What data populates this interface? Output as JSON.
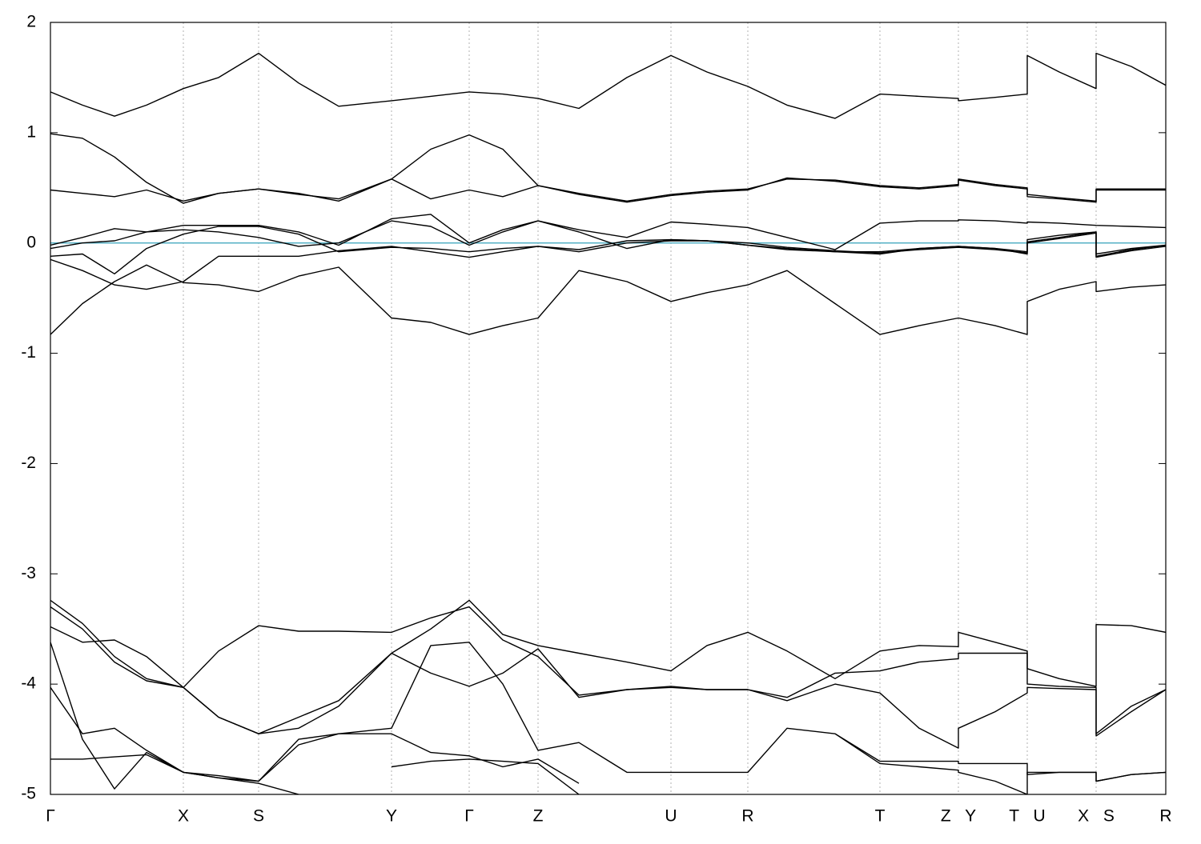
{
  "chart_data": {
    "type": "line",
    "x": [
      0,
      0.4,
      0.8,
      1.2,
      1.66,
      2.1,
      2.6,
      3.1,
      3.6,
      4.26,
      4.75,
      5.23,
      5.65,
      6.09,
      6.6,
      7.2,
      7.75,
      8.2,
      8.71,
      9.2,
      9.8,
      10.36,
      10.85,
      11.34,
      11.34,
      11.8,
      12.2,
      12.2,
      12.6,
      13.06,
      13.06,
      13.5,
      13.93
    ],
    "xlim": [
      0,
      13.93
    ],
    "xticks": [
      {
        "value": 0,
        "label": "Γ"
      },
      {
        "value": 1.66,
        "label": "X"
      },
      {
        "value": 2.6,
        "label": "S"
      },
      {
        "value": 4.26,
        "label": "Y"
      },
      {
        "value": 5.23,
        "label": "Γ"
      },
      {
        "value": 6.09,
        "label": "Z"
      },
      {
        "value": 7.75,
        "label": "U"
      },
      {
        "value": 8.71,
        "label": "R"
      },
      {
        "value": 10.36,
        "label": "T"
      },
      {
        "value": 11.34,
        "label": "Z Y"
      },
      {
        "value": 12.2,
        "label": "T U"
      },
      {
        "value": 13.06,
        "label": "X S"
      },
      {
        "value": 13.93,
        "label": "R"
      }
    ],
    "ylim": [
      -5,
      2
    ],
    "yticks": [
      -5,
      -4,
      -3,
      -2,
      -1,
      0,
      1,
      2
    ],
    "grid": true,
    "reference_line": {
      "value": 0,
      "color": "#5bb3c7"
    },
    "series": [
      {
        "color": "#000000",
        "values": [
          1.37,
          1.25,
          1.15,
          1.25,
          1.4,
          1.5,
          1.72,
          1.45,
          1.24,
          1.29,
          1.33,
          1.37,
          1.35,
          1.31,
          1.22,
          1.5,
          1.7,
          1.55,
          1.42,
          1.25,
          1.13,
          1.35,
          1.33,
          1.31,
          1.29,
          1.32,
          1.35,
          1.7,
          1.55,
          1.4,
          1.72,
          1.6,
          1.43
        ]
      },
      {
        "color": "#000000",
        "values": [
          0.99,
          0.95,
          0.78,
          0.55,
          0.36,
          0.45,
          0.49,
          0.45,
          0.38,
          0.58,
          0.85,
          0.98,
          0.85,
          0.52,
          0.45,
          0.38,
          0.44,
          0.47,
          0.49,
          0.58,
          0.57,
          0.52,
          0.5,
          0.53,
          0.58,
          0.53,
          0.5,
          0.44,
          0.41,
          0.38,
          0.49,
          0.49,
          0.49
        ]
      },
      {
        "color": "#000000",
        "values": [
          0.48,
          0.45,
          0.42,
          0.48,
          0.38,
          0.45,
          0.49,
          0.44,
          0.4,
          0.58,
          0.4,
          0.48,
          0.42,
          0.52,
          0.44,
          0.37,
          0.43,
          0.46,
          0.48,
          0.59,
          0.56,
          0.51,
          0.49,
          0.52,
          0.57,
          0.52,
          0.49,
          0.42,
          0.4,
          0.37,
          0.48,
          0.48,
          0.48
        ]
      },
      {
        "color": "#000000",
        "values": [
          -0.02,
          0.05,
          0.13,
          0.1,
          0.16,
          0.16,
          0.16,
          0.1,
          -0.02,
          0.22,
          0.26,
          0.0,
          0.12,
          0.2,
          0.12,
          0.05,
          0.19,
          0.17,
          0.14,
          0.05,
          -0.06,
          0.18,
          0.2,
          0.2,
          0.21,
          0.2,
          0.18,
          0.19,
          0.18,
          0.16,
          0.16,
          0.15,
          0.14
        ]
      },
      {
        "color": "#000000",
        "values": [
          -0.05,
          0.0,
          0.02,
          0.1,
          0.12,
          0.1,
          0.05,
          -0.03,
          0.0,
          0.2,
          0.15,
          -0.02,
          0.1,
          0.2,
          0.1,
          -0.05,
          0.03,
          0.02,
          -0.02,
          -0.06,
          -0.08,
          -0.08,
          -0.05,
          -0.03,
          -0.03,
          -0.05,
          -0.08,
          0.03,
          0.07,
          0.1,
          -0.12,
          -0.06,
          -0.02
        ]
      },
      {
        "color": "#000000",
        "values": [
          -0.12,
          -0.1,
          -0.28,
          -0.05,
          0.08,
          0.15,
          0.15,
          0.08,
          -0.08,
          -0.04,
          -0.05,
          -0.08,
          -0.05,
          -0.03,
          -0.06,
          0.02,
          0.03,
          0.02,
          -0.02,
          -0.05,
          -0.08,
          -0.1,
          -0.05,
          -0.03,
          -0.03,
          -0.05,
          -0.1,
          0.01,
          0.05,
          0.1,
          -0.1,
          -0.05,
          -0.02
        ]
      },
      {
        "color": "#000000",
        "values": [
          -0.15,
          -0.25,
          -0.38,
          -0.42,
          -0.35,
          -0.12,
          -0.12,
          -0.12,
          -0.07,
          -0.03,
          -0.08,
          -0.13,
          -0.08,
          -0.03,
          -0.08,
          0.0,
          0.02,
          0.02,
          0.0,
          -0.04,
          -0.07,
          -0.09,
          -0.06,
          -0.04,
          -0.04,
          -0.06,
          -0.09,
          0.0,
          0.04,
          0.09,
          -0.13,
          -0.07,
          -0.03
        ]
      },
      {
        "color": "#000000",
        "values": [
          -0.83,
          -0.55,
          -0.35,
          -0.2,
          -0.36,
          -0.38,
          -0.44,
          -0.3,
          -0.22,
          -0.68,
          -0.72,
          -0.83,
          -0.75,
          -0.68,
          -0.25,
          -0.35,
          -0.53,
          -0.45,
          -0.38,
          -0.25,
          -0.55,
          -0.83,
          -0.75,
          -0.68,
          -0.68,
          -0.75,
          -0.83,
          -0.53,
          -0.42,
          -0.35,
          -0.44,
          -0.4,
          -0.38
        ]
      },
      {
        "color": "#000000",
        "values": [
          -3.24,
          -3.45,
          -3.75,
          -3.95,
          -4.03,
          -4.3,
          -4.45,
          -4.3,
          -4.15,
          -3.72,
          -3.5,
          -3.24,
          -3.55,
          -3.65,
          -3.72,
          -3.8,
          -3.88,
          -3.65,
          -3.53,
          -3.7,
          -3.95,
          -3.7,
          -3.65,
          -3.66,
          -3.53,
          -3.62,
          -3.7,
          -3.86,
          -3.95,
          -4.02,
          -3.46,
          -3.47,
          -3.53
        ]
      },
      {
        "color": "#000000",
        "values": [
          -3.3,
          -3.5,
          -3.8,
          -3.97,
          -4.03,
          -3.7,
          -3.47,
          -3.52,
          -3.52,
          -3.53,
          -3.4,
          -3.3,
          -3.6,
          -3.75,
          -4.1,
          -4.05,
          -4.02,
          -4.05,
          -4.05,
          -4.12,
          -3.9,
          -3.88,
          -3.8,
          -3.77,
          -3.72,
          -3.72,
          -3.72,
          -4.0,
          -4.02,
          -4.03,
          -4.45,
          -4.2,
          -4.05
        ]
      },
      {
        "color": "#000000",
        "values": [
          -3.48,
          -3.62,
          -3.6,
          -3.75,
          -4.03,
          -4.3,
          -4.45,
          -4.4,
          -4.2,
          -3.72,
          -3.9,
          -4.02,
          -3.9,
          -3.68,
          -4.12,
          -4.05,
          -4.03,
          -4.05,
          -4.05,
          -4.15,
          -4.0,
          -4.08,
          -4.4,
          -4.58,
          -4.4,
          -4.25,
          -4.08,
          -4.03,
          -4.04,
          -4.05,
          -4.47,
          -4.25,
          -4.05
        ]
      },
      {
        "color": "#000000",
        "values": [
          -3.62,
          -4.5,
          -4.95,
          -4.62,
          -4.8,
          -4.85,
          -4.88,
          -4.5,
          -4.45,
          -4.4,
          -3.65,
          -3.62,
          -4.0,
          -4.6,
          -4.53,
          -4.8,
          -4.8,
          -4.8,
          -4.8,
          -4.4,
          -4.45,
          -4.7,
          -4.7,
          -4.7,
          -4.72,
          -4.72,
          -4.72,
          -4.82,
          -4.8,
          -4.8,
          -4.88,
          -4.82,
          -4.8
        ]
      },
      {
        "color": "#000000",
        "values": [
          -4.03,
          -4.45,
          -4.4,
          -4.6,
          -4.8,
          -4.83,
          -4.88,
          -4.55,
          -4.45,
          -4.45,
          -4.62,
          -4.65,
          -4.75,
          -4.68,
          -4.9,
          null,
          null,
          null,
          null,
          null,
          -4.45,
          -4.72,
          -4.75,
          -4.78,
          -4.8,
          -4.88,
          -5.0,
          -4.8,
          -4.8,
          -4.8,
          -4.88,
          -4.82,
          -4.8
        ]
      },
      {
        "color": "#000000",
        "values": [
          -4.68,
          -4.68,
          -4.66,
          -4.64,
          -4.8,
          -4.85,
          -4.9,
          -5.0,
          null,
          -4.75,
          -4.7,
          -4.68,
          -4.7,
          -4.72,
          -5.0,
          null,
          null,
          null,
          null,
          null,
          null,
          null,
          null,
          null,
          null,
          null,
          null,
          null,
          null,
          null,
          null,
          null,
          null
        ]
      }
    ]
  }
}
